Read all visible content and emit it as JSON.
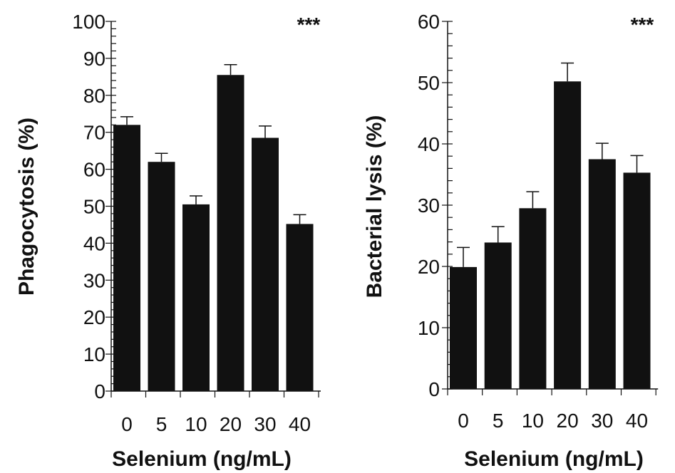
{
  "chart_data": [
    {
      "type": "bar",
      "categories": [
        "0",
        "5",
        "10",
        "20",
        "30",
        "40"
      ],
      "values": [
        72,
        62,
        50.5,
        85.5,
        68.5,
        45.2
      ],
      "errors": [
        2.2,
        2.3,
        2.3,
        2.8,
        3.2,
        2.5
      ],
      "xlabel": "Selenium (ng/mL)",
      "ylabel": "Phagocytosis (%)",
      "ylim": [
        0,
        100
      ],
      "yticks": [
        "0",
        "10",
        "20",
        "30",
        "40",
        "50",
        "60",
        "70",
        "80",
        "90",
        "100"
      ],
      "annotation": "***",
      "bar_color": "#111111"
    },
    {
      "type": "bar",
      "categories": [
        "0",
        "5",
        "10",
        "20",
        "30",
        "40"
      ],
      "values": [
        19.9,
        23.9,
        29.5,
        50.2,
        37.5,
        35.3
      ],
      "errors": [
        3.2,
        2.6,
        2.7,
        3.0,
        2.6,
        2.8
      ],
      "xlabel": "Selenium (ng/mL)",
      "ylabel": "Bacterial lysis (%)",
      "ylim": [
        0,
        60
      ],
      "yticks": [
        "0",
        "10",
        "20",
        "30",
        "40",
        "50",
        "60"
      ],
      "annotation": "***",
      "bar_color": "#111111"
    }
  ]
}
